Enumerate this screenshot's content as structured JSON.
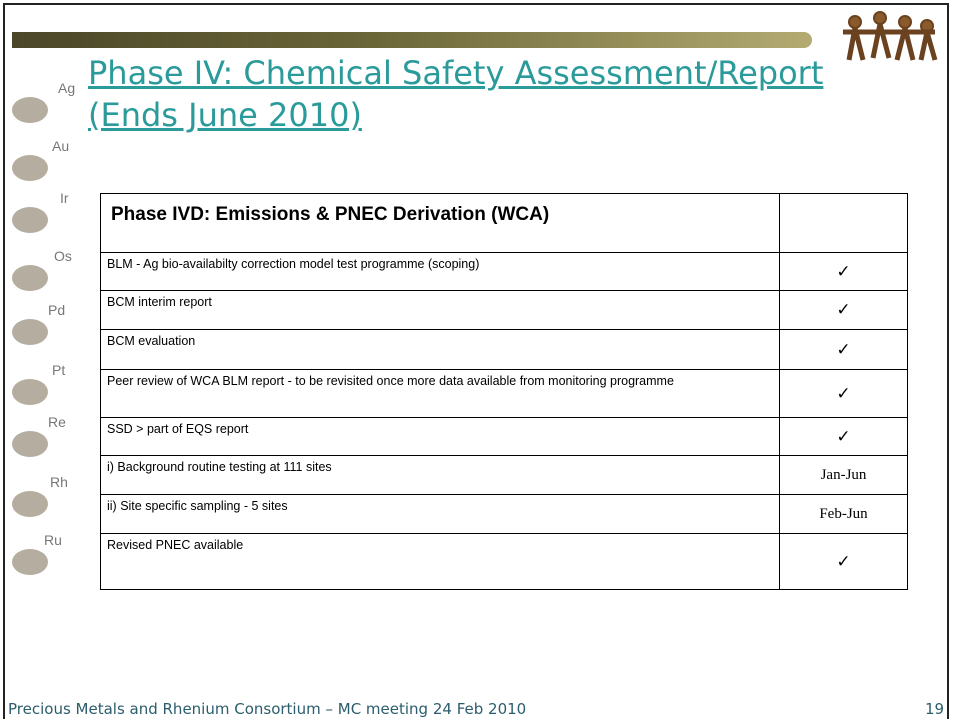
{
  "header": {
    "title_lines": [
      "Phase IV: Chemical Safety Assessment/Report",
      "(Ends June 2010)"
    ]
  },
  "elements": [
    "Ag",
    "Au",
    "Ir",
    "Os",
    "Pd",
    "Pt",
    "Re",
    "Rh",
    "Ru"
  ],
  "table": {
    "header": "Phase IVD: Emissions & PNEC Derivation (WCA)",
    "rows": [
      [
        "BLM - Ag bio-availabilty correction model test programme (scoping)",
        "✓"
      ],
      [
        "BCM interim report",
        "✓"
      ],
      [
        "BCM  evaluation",
        "✓"
      ],
      [
        "Peer review of WCA BLM report - to be revisited once more data available from monitoring programme",
        "✓"
      ],
      [
        "SSD > part of EQS report",
        "✓"
      ],
      [
        "i)  Background routine testing at 111 sites",
        "Jan-Jun"
      ],
      [
        "ii) Site specific sampling - 5 sites",
        "Feb-Jun"
      ],
      [
        "Revised PNEC available",
        "✓"
      ]
    ]
  },
  "footer": {
    "text": "Precious Metals and Rhenium Consortium – MC meeting 24 Feb 2010",
    "page": "19"
  }
}
